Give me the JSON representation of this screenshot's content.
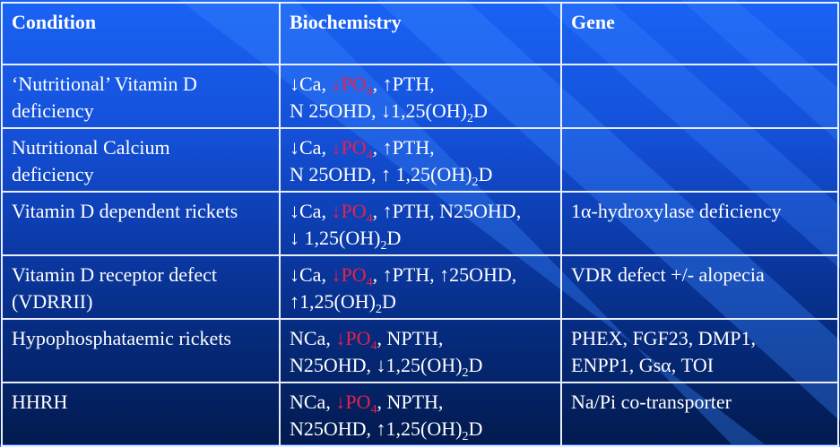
{
  "colors": {
    "background_top": "#1a63f5",
    "background_bottom": "#021a4e",
    "text": "#ffffff",
    "phosphate_highlight": "#e8204c",
    "grid": "#e8eefc"
  },
  "headers": [
    "Condition",
    "Biochemistry",
    "Gene"
  ],
  "rows": [
    {
      "condition": [
        "‘Nutritional’ Vitamin D",
        "deficiency"
      ],
      "biochemistry": [
        [
          {
            "t": "↓Ca, "
          },
          {
            "t": "↓PO",
            "red": true
          },
          {
            "t": "4",
            "red": true,
            "sub": true
          },
          {
            "t": ", ↑PTH,"
          }
        ],
        [
          {
            "t": "N 25OHD, ↓1,25(OH)"
          },
          {
            "t": "2",
            "sub": true
          },
          {
            "t": "D"
          }
        ]
      ],
      "gene": []
    },
    {
      "condition": [
        "Nutritional Calcium",
        "deficiency"
      ],
      "biochemistry": [
        [
          {
            "t": "↓Ca, "
          },
          {
            "t": "↓PO",
            "red": true
          },
          {
            "t": "4",
            "red": true,
            "sub": true
          },
          {
            "t": ", ↑PTH,"
          }
        ],
        [
          {
            "t": "N 25OHD, ↑ 1,25(OH)"
          },
          {
            "t": "2",
            "sub": true
          },
          {
            "t": "D"
          }
        ]
      ],
      "gene": []
    },
    {
      "condition": [
        "Vitamin D dependent rickets"
      ],
      "biochemistry": [
        [
          {
            "t": "↓Ca, "
          },
          {
            "t": "↓PO",
            "red": true
          },
          {
            "t": "4",
            "red": true,
            "sub": true
          },
          {
            "t": ", ↑PTH, N25OHD,"
          }
        ],
        [
          {
            "t": "↓ 1,25(OH)"
          },
          {
            "t": "2",
            "sub": true
          },
          {
            "t": "D"
          }
        ]
      ],
      "gene": [
        "1α-hydroxylase deficiency"
      ]
    },
    {
      "condition": [
        "Vitamin D receptor defect",
        "(VDRRII)"
      ],
      "biochemistry": [
        [
          {
            "t": "↓Ca, "
          },
          {
            "t": "↓PO",
            "red": true
          },
          {
            "t": "4",
            "red": true,
            "sub": true
          },
          {
            "t": ", ↑PTH, ↑25OHD,"
          }
        ],
        [
          {
            "t": "↑1,25(OH)"
          },
          {
            "t": "2",
            "sub": true
          },
          {
            "t": "D"
          }
        ]
      ],
      "gene": [
        "VDR defect +/- alopecia"
      ]
    },
    {
      "condition": [
        "Hypophosphataemic rickets"
      ],
      "biochemistry": [
        [
          {
            "t": "NCa, "
          },
          {
            "t": "↓PO",
            "red": true
          },
          {
            "t": "4",
            "red": true,
            "sub": true
          },
          {
            "t": ", NPTH,"
          }
        ],
        [
          {
            "t": "N25OHD, ↓1,25(OH)"
          },
          {
            "t": "2",
            "sub": true
          },
          {
            "t": "D"
          }
        ]
      ],
      "gene": [
        "PHEX, FGF23, DMP1,",
        "ENPP1, Gsα, TOI"
      ]
    },
    {
      "condition": [
        "HHRH"
      ],
      "biochemistry": [
        [
          {
            "t": "NCa, "
          },
          {
            "t": "↓PO",
            "red": true
          },
          {
            "t": "4",
            "red": true,
            "sub": true
          },
          {
            "t": ", NPTH,"
          }
        ],
        [
          {
            "t": "N25OHD, ↑1,25(OH)"
          },
          {
            "t": "2",
            "sub": true
          },
          {
            "t": "D"
          }
        ]
      ],
      "gene": [
        "Na/Pi co-transporter"
      ]
    }
  ]
}
